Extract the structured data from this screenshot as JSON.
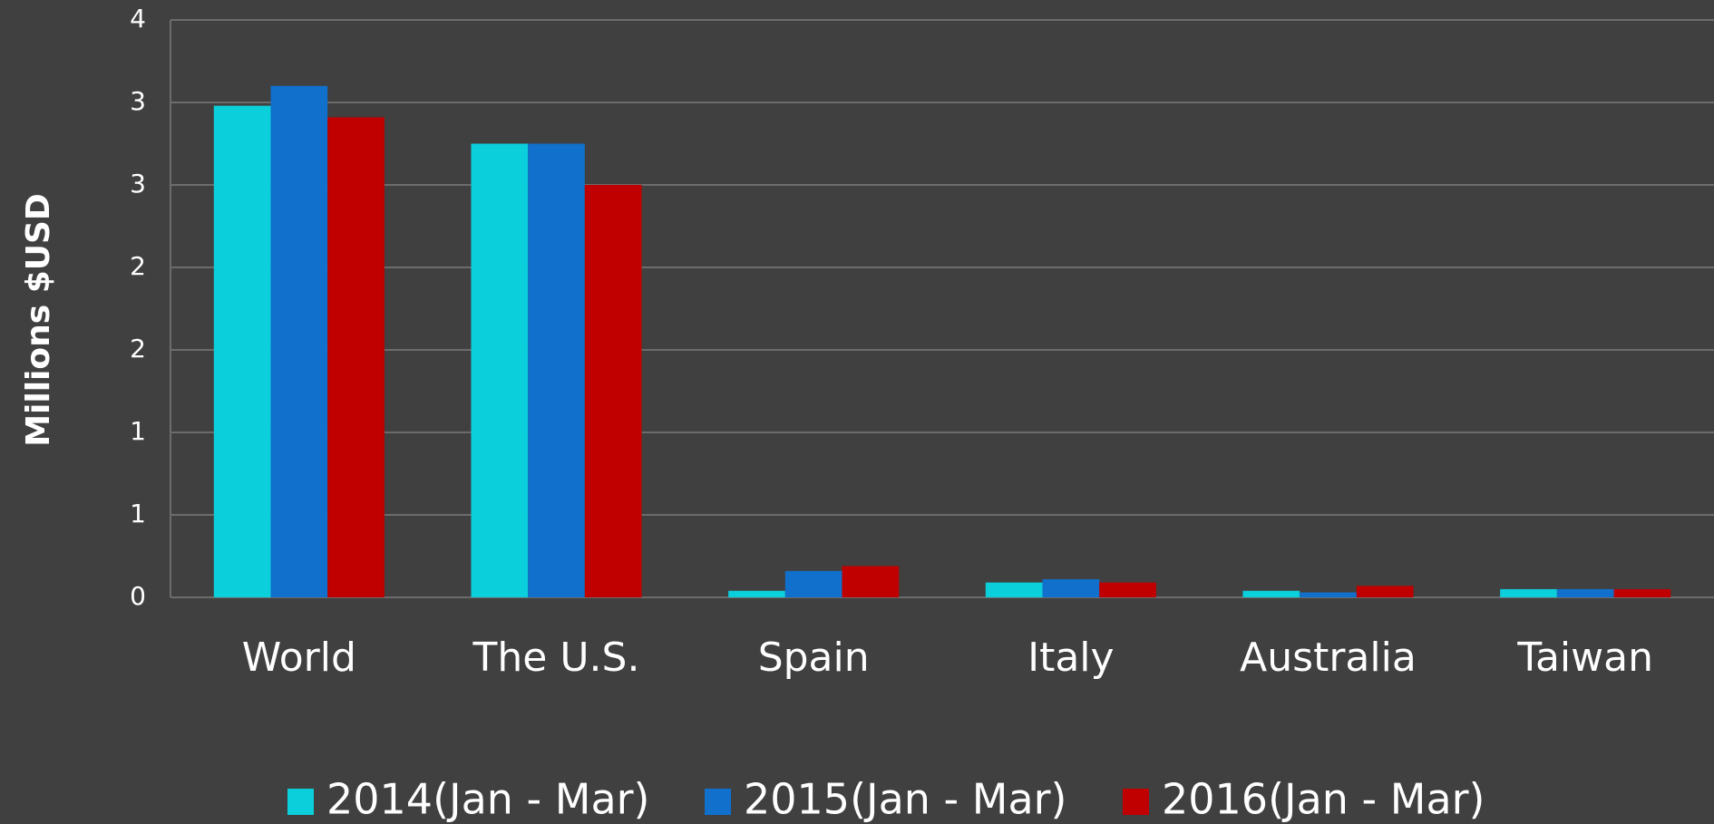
{
  "chart_data": {
    "type": "bar",
    "y_label": "Millions $USD",
    "categories": [
      "World",
      "The U.S.",
      "Spain",
      "Italy",
      "Australia",
      "Taiwan"
    ],
    "series": [
      {
        "name": "2014(Jan - Mar)",
        "color": "#0bcfdb",
        "values": [
          2.98,
          2.75,
          0.04,
          0.09,
          0.04,
          0.05
        ]
      },
      {
        "name": "2015(Jan - Mar)",
        "color": "#1070cc",
        "values": [
          3.1,
          2.75,
          0.16,
          0.11,
          0.03,
          0.05
        ]
      },
      {
        "name": "2016(Jan - Mar)",
        "color": "#c00000",
        "values": [
          2.91,
          2.5,
          0.19,
          0.09,
          0.07,
          0.05
        ]
      }
    ],
    "ylim": [
      0,
      3.5
    ],
    "yticks": [
      0,
      {
        "value": 0.5,
        "label": "1"
      },
      1,
      {
        "value": 1.5,
        "label": "2"
      },
      2,
      {
        "value": 2.5,
        "label": "3"
      },
      3,
      {
        "value": 3.5,
        "label": "4"
      }
    ],
    "grid": true,
    "legend": "bottom"
  }
}
